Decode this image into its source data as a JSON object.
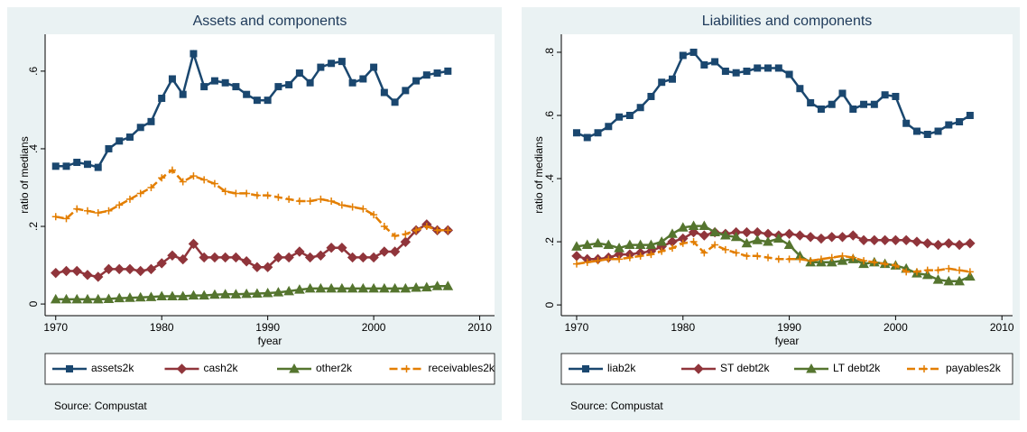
{
  "chart_data": [
    {
      "type": "line",
      "title": "Assets and components",
      "ylabel": "ratio of medians",
      "xlabel": "fyear",
      "note": "Source: Compustat",
      "legend": "bottom",
      "x": [
        1970,
        1971,
        1972,
        1973,
        1974,
        1975,
        1976,
        1977,
        1978,
        1979,
        1980,
        1981,
        1982,
        1983,
        1984,
        1985,
        1986,
        1987,
        1988,
        1989,
        1990,
        1991,
        1992,
        1993,
        1994,
        1995,
        1996,
        1997,
        1998,
        1999,
        2000,
        2001,
        2002,
        2003,
        2004,
        2005,
        2006,
        2007
      ],
      "xlim": [
        1969,
        2011.4
      ],
      "xticks": [
        1970,
        1980,
        1990,
        2000,
        2010
      ],
      "ylim": [
        -0.03,
        0.695
      ],
      "yticks": [
        0,
        {
          "value": 0.2,
          "label": ".2"
        },
        {
          "value": 0.4,
          "label": ".4"
        },
        {
          "value": 0.6,
          "label": ".6"
        }
      ],
      "series": [
        {
          "name": "assets2k",
          "color": "#1a476f",
          "marker": "square",
          "dash": false,
          "values": [
            0.355,
            0.355,
            0.365,
            0.36,
            0.352,
            0.4,
            0.42,
            0.43,
            0.455,
            0.47,
            0.53,
            0.58,
            0.54,
            0.645,
            0.56,
            0.575,
            0.57,
            0.56,
            0.54,
            0.525,
            0.525,
            0.56,
            0.565,
            0.595,
            0.57,
            0.61,
            0.62,
            0.625,
            0.57,
            0.58,
            0.61,
            0.545,
            0.52,
            0.55,
            0.575,
            0.59,
            0.595,
            0.6
          ]
        },
        {
          "name": "cash2k",
          "color": "#90353b",
          "marker": "diamond",
          "dash": false,
          "values": [
            0.08,
            0.085,
            0.085,
            0.075,
            0.07,
            0.09,
            0.09,
            0.09,
            0.085,
            0.09,
            0.105,
            0.125,
            0.115,
            0.155,
            0.12,
            0.12,
            0.12,
            0.12,
            0.11,
            0.095,
            0.095,
            0.12,
            0.12,
            0.135,
            0.12,
            0.125,
            0.145,
            0.145,
            0.12,
            0.12,
            0.12,
            0.135,
            0.135,
            0.16,
            0.19,
            0.205,
            0.19,
            0.19
          ]
        },
        {
          "name": "other2k",
          "color": "#55752f",
          "marker": "triangle",
          "dash": false,
          "values": [
            0.012,
            0.012,
            0.012,
            0.012,
            0.012,
            0.013,
            0.015,
            0.016,
            0.017,
            0.018,
            0.02,
            0.02,
            0.02,
            0.022,
            0.022,
            0.024,
            0.025,
            0.025,
            0.026,
            0.027,
            0.028,
            0.03,
            0.033,
            0.037,
            0.04,
            0.04,
            0.04,
            0.04,
            0.04,
            0.04,
            0.04,
            0.04,
            0.04,
            0.04,
            0.042,
            0.043,
            0.046,
            0.046
          ]
        },
        {
          "name": "receivables2k",
          "color": "#e37e00",
          "marker": "plus",
          "dash": true,
          "values": [
            0.225,
            0.22,
            0.245,
            0.24,
            0.235,
            0.24,
            0.255,
            0.27,
            0.285,
            0.3,
            0.325,
            0.345,
            0.315,
            0.33,
            0.32,
            0.31,
            0.29,
            0.285,
            0.285,
            0.28,
            0.28,
            0.275,
            0.27,
            0.265,
            0.265,
            0.27,
            0.265,
            0.255,
            0.25,
            0.245,
            0.23,
            0.2,
            0.175,
            0.18,
            0.19,
            0.2,
            0.19,
            0.19
          ]
        }
      ]
    },
    {
      "type": "line",
      "title": "Liabilities and components",
      "ylabel": "ratio of medians",
      "xlabel": "fyear",
      "note": "Source: Compustat",
      "legend": "bottom",
      "x": [
        1970,
        1971,
        1972,
        1973,
        1974,
        1975,
        1976,
        1977,
        1978,
        1979,
        1980,
        1981,
        1982,
        1983,
        1984,
        1985,
        1986,
        1987,
        1988,
        1989,
        1990,
        1991,
        1992,
        1993,
        1994,
        1995,
        1996,
        1997,
        1998,
        1999,
        2000,
        2001,
        2002,
        2003,
        2004,
        2005,
        2006,
        2007
      ],
      "xlim": [
        1968.56,
        2011
      ],
      "xticks": [
        1970,
        1980,
        1990,
        2000,
        2010
      ],
      "ylim": [
        -0.034,
        0.857
      ],
      "yticks": [
        0,
        {
          "value": 0.2,
          "label": ".2"
        },
        {
          "value": 0.4,
          "label": ".4"
        },
        {
          "value": 0.6,
          "label": ".6"
        },
        {
          "value": 0.8,
          "label": ".8"
        }
      ],
      "series": [
        {
          "name": "liab2k",
          "color": "#1a476f",
          "marker": "square",
          "dash": false,
          "values": [
            0.545,
            0.53,
            0.545,
            0.565,
            0.595,
            0.6,
            0.625,
            0.66,
            0.705,
            0.715,
            0.79,
            0.8,
            0.76,
            0.77,
            0.74,
            0.735,
            0.74,
            0.75,
            0.75,
            0.75,
            0.73,
            0.685,
            0.64,
            0.62,
            0.635,
            0.67,
            0.62,
            0.635,
            0.635,
            0.665,
            0.66,
            0.575,
            0.55,
            0.54,
            0.55,
            0.57,
            0.58,
            0.6
          ]
        },
        {
          "name": "ST debt2k",
          "color": "#90353b",
          "marker": "diamond",
          "dash": false,
          "values": [
            0.155,
            0.145,
            0.145,
            0.15,
            0.16,
            0.16,
            0.165,
            0.17,
            0.185,
            0.2,
            0.21,
            0.23,
            0.22,
            0.23,
            0.225,
            0.23,
            0.23,
            0.23,
            0.225,
            0.22,
            0.225,
            0.22,
            0.215,
            0.21,
            0.215,
            0.215,
            0.22,
            0.205,
            0.205,
            0.205,
            0.205,
            0.205,
            0.2,
            0.195,
            0.19,
            0.195,
            0.19,
            0.195
          ]
        },
        {
          "name": "LT debt2k",
          "color": "#55752f",
          "marker": "triangle",
          "dash": false,
          "values": [
            0.185,
            0.19,
            0.195,
            0.19,
            0.18,
            0.19,
            0.19,
            0.19,
            0.2,
            0.225,
            0.245,
            0.25,
            0.25,
            0.23,
            0.22,
            0.215,
            0.195,
            0.205,
            0.2,
            0.21,
            0.19,
            0.155,
            0.135,
            0.135,
            0.135,
            0.14,
            0.145,
            0.13,
            0.135,
            0.13,
            0.125,
            0.115,
            0.1,
            0.095,
            0.08,
            0.075,
            0.075,
            0.09
          ]
        },
        {
          "name": "payables2k",
          "color": "#e37e00",
          "marker": "plus",
          "dash": true,
          "values": [
            0.13,
            0.135,
            0.14,
            0.145,
            0.145,
            0.15,
            0.155,
            0.16,
            0.17,
            0.18,
            0.195,
            0.2,
            0.165,
            0.19,
            0.175,
            0.165,
            0.155,
            0.155,
            0.15,
            0.145,
            0.145,
            0.145,
            0.14,
            0.145,
            0.15,
            0.155,
            0.15,
            0.14,
            0.135,
            0.13,
            0.125,
            0.105,
            0.105,
            0.11,
            0.11,
            0.115,
            0.11,
            0.105
          ]
        }
      ]
    }
  ]
}
